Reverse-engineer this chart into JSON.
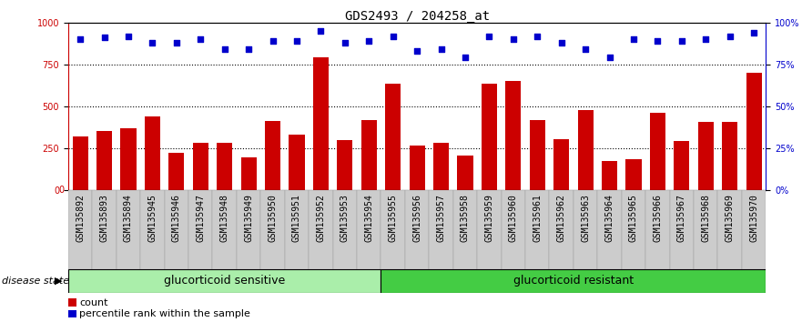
{
  "title": "GDS2493 / 204258_at",
  "samples": [
    "GSM135892",
    "GSM135893",
    "GSM135894",
    "GSM135945",
    "GSM135946",
    "GSM135947",
    "GSM135948",
    "GSM135949",
    "GSM135950",
    "GSM135951",
    "GSM135952",
    "GSM135953",
    "GSM135954",
    "GSM135955",
    "GSM135956",
    "GSM135957",
    "GSM135958",
    "GSM135959",
    "GSM135960",
    "GSM135961",
    "GSM135962",
    "GSM135963",
    "GSM135964",
    "GSM135965",
    "GSM135966",
    "GSM135967",
    "GSM135968",
    "GSM135969",
    "GSM135970"
  ],
  "counts": [
    320,
    350,
    370,
    440,
    220,
    280,
    280,
    195,
    410,
    330,
    790,
    300,
    415,
    635,
    265,
    280,
    205,
    635,
    650,
    415,
    305,
    480,
    175,
    185,
    460,
    290,
    405,
    405,
    700
  ],
  "percentiles": [
    90,
    91,
    92,
    88,
    88,
    90,
    84,
    84,
    89,
    89,
    95,
    88,
    89,
    92,
    83,
    84,
    79,
    92,
    90,
    92,
    88,
    84,
    79,
    90,
    89,
    89,
    90,
    92,
    94
  ],
  "sensitive_count": 13,
  "resistant_count": 16,
  "bar_color": "#cc0000",
  "dot_color": "#0000cc",
  "sensitive_color": "#aaeeaa",
  "resistant_color": "#44cc44",
  "ylim_left": [
    0,
    1000
  ],
  "ylim_right": [
    0,
    100
  ],
  "yticks_left": [
    0,
    250,
    500,
    750,
    1000
  ],
  "yticks_right": [
    0,
    25,
    50,
    75,
    100
  ],
  "tick_fontsize": 7,
  "label_fontsize": 7,
  "legend_fontsize": 8,
  "group_label_fontsize": 9,
  "title_fontsize": 10,
  "disease_state_label": "disease state",
  "group1_label": "glucorticoid sensitive",
  "group2_label": "glucorticoid resistant"
}
